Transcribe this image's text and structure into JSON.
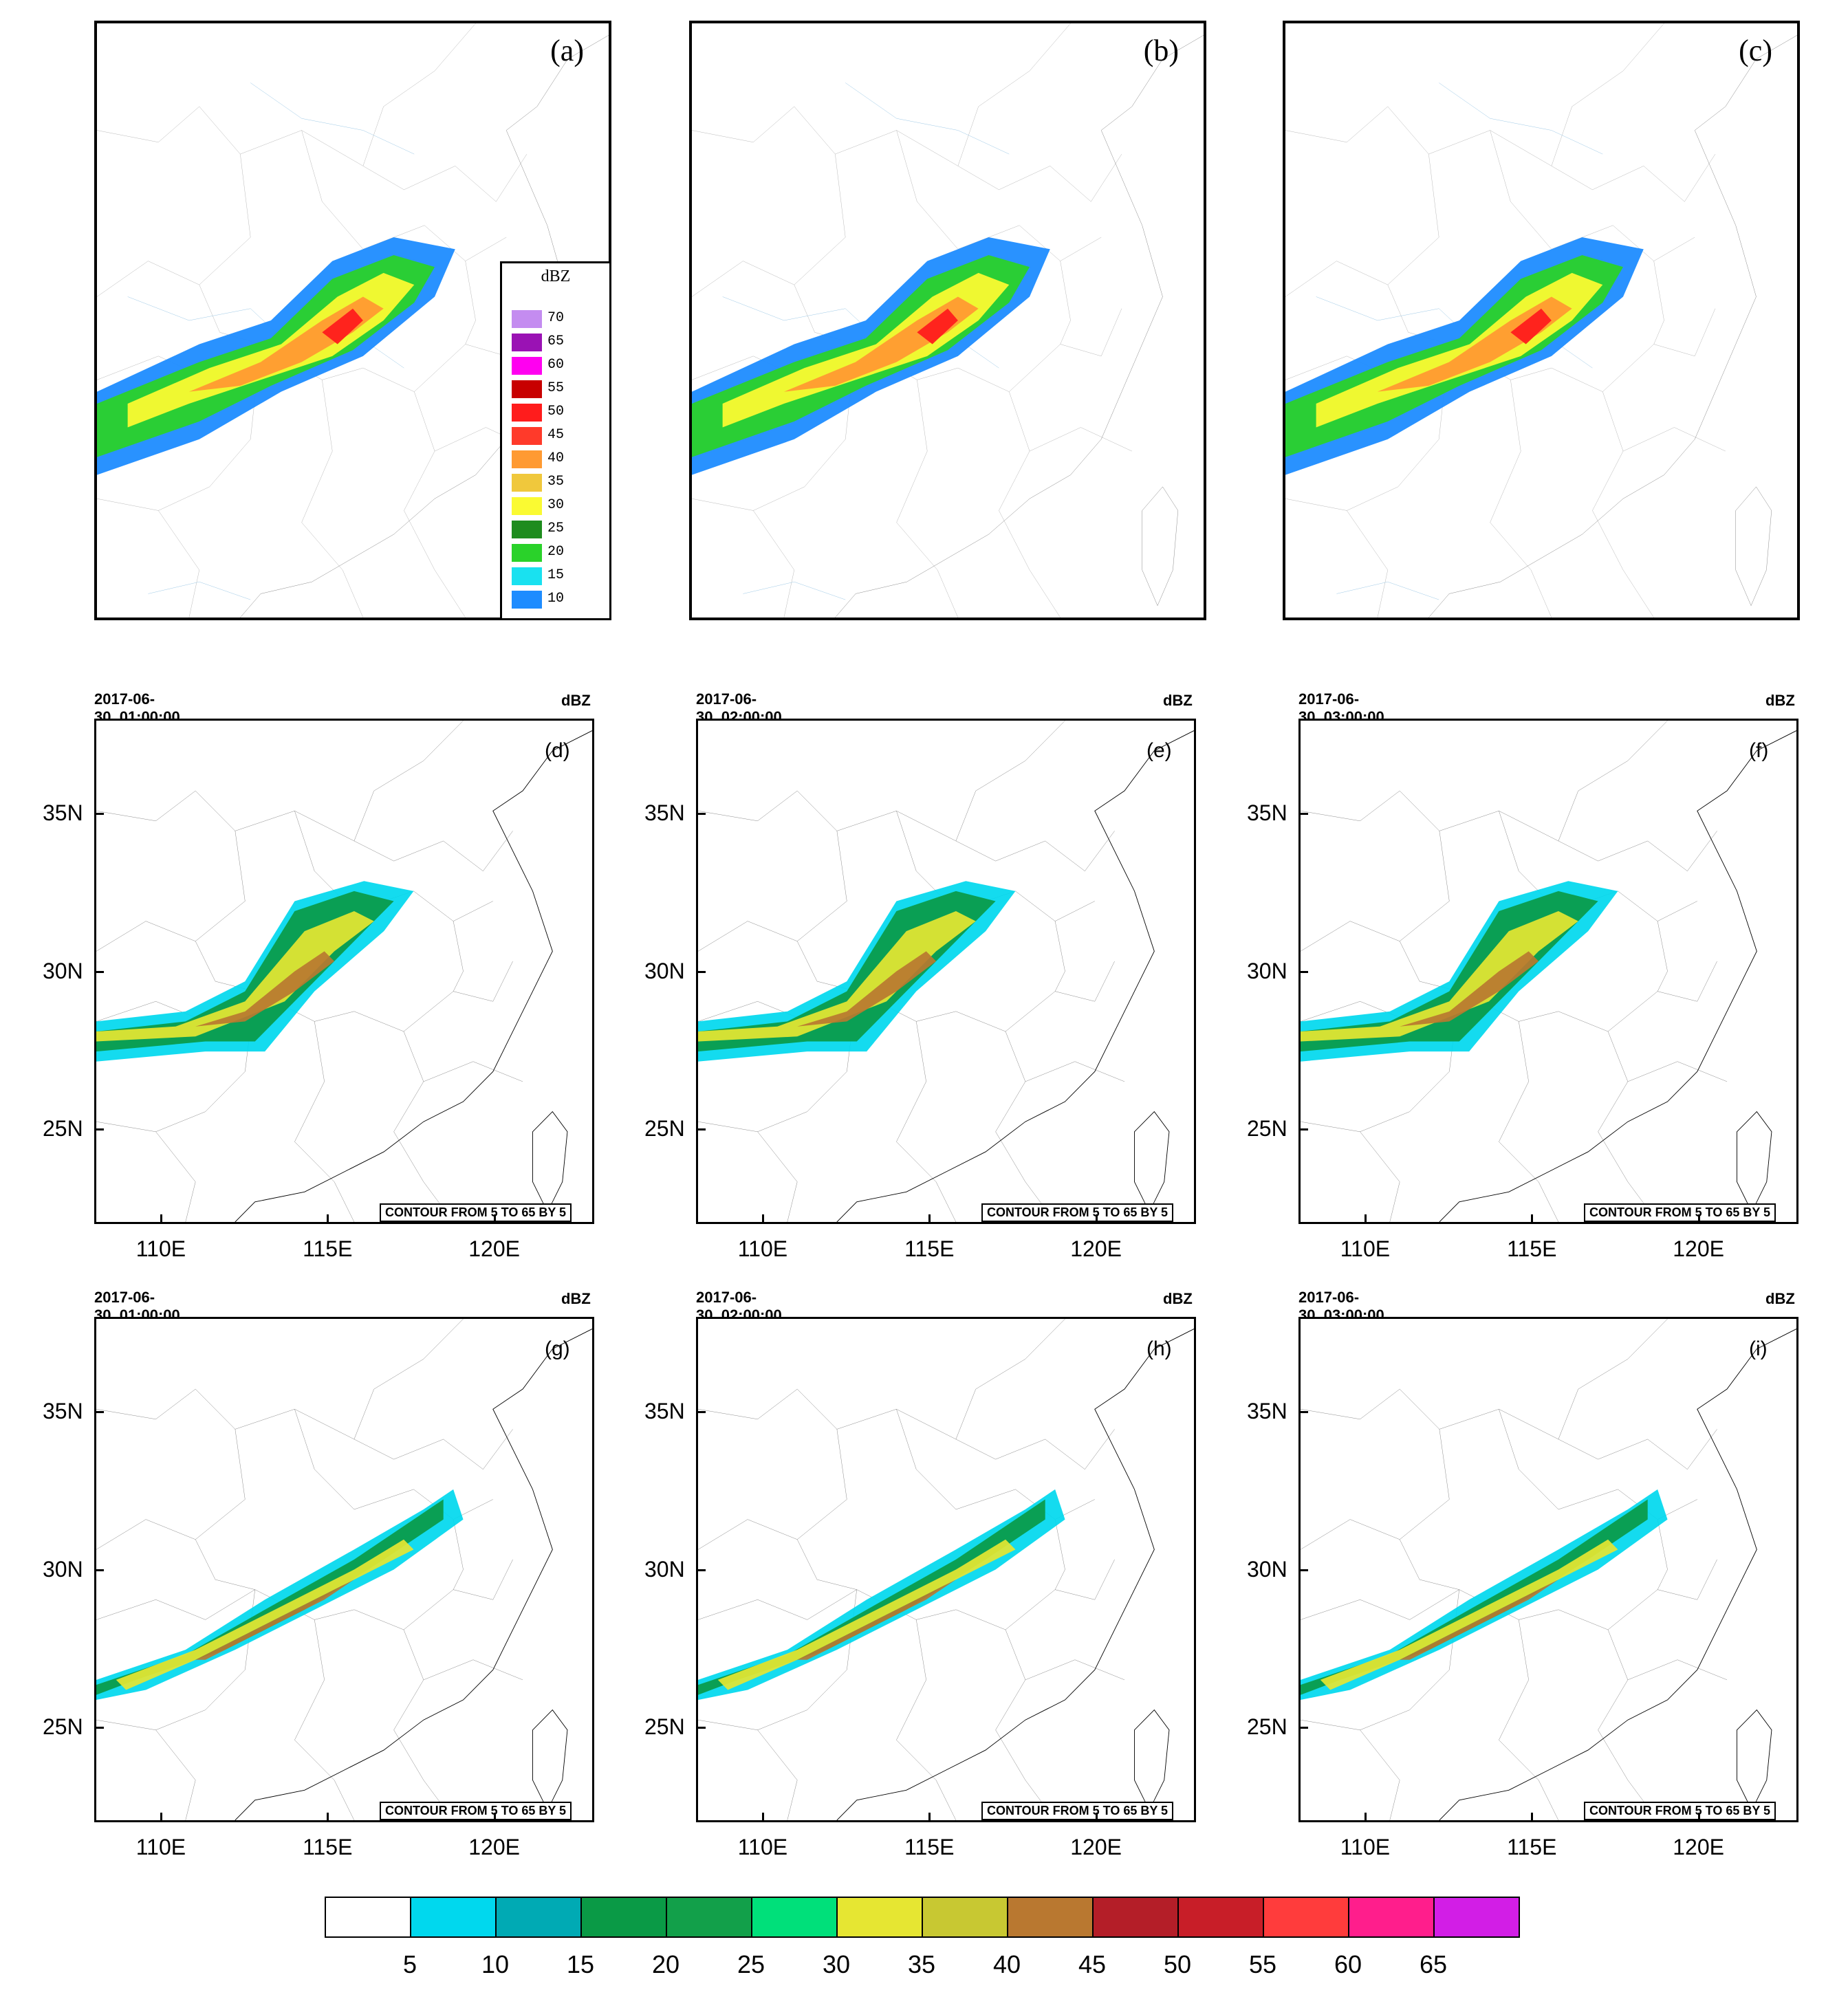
{
  "radar_panels": [
    {
      "label": "(a)"
    },
    {
      "label": "(b)"
    },
    {
      "label": "(c)"
    }
  ],
  "radar_legend": {
    "title": "dBZ",
    "levels": [
      {
        "value": "70",
        "color": "#c48cf0"
      },
      {
        "value": "65",
        "color": "#9a12b4"
      },
      {
        "value": "60",
        "color": "#ff00f0"
      },
      {
        "value": "55",
        "color": "#c80000"
      },
      {
        "value": "50",
        "color": "#ff1c1c"
      },
      {
        "value": "45",
        "color": "#ff3a2a"
      },
      {
        "value": "40",
        "color": "#ff9a32"
      },
      {
        "value": "35",
        "color": "#f0c83c"
      },
      {
        "value": "30",
        "color": "#fafa32"
      },
      {
        "value": "25",
        "color": "#1e8c1e"
      },
      {
        "value": "20",
        "color": "#2ad22a"
      },
      {
        "value": "15",
        "color": "#19e1f0"
      },
      {
        "value": "10",
        "color": "#1e8cff"
      }
    ]
  },
  "model_panels": [
    {
      "label": "(d)",
      "datetime": "2017-06-30_01:00:00",
      "unit": "dBZ",
      "contour_note": "CONTOUR FROM 5 TO 65 BY 5"
    },
    {
      "label": "(e)",
      "datetime": "2017-06-30_02:00:00",
      "unit": "dBZ",
      "contour_note": "CONTOUR FROM 5 TO 65 BY 5"
    },
    {
      "label": "(f)",
      "datetime": "2017-06-30_03:00:00",
      "unit": "dBZ",
      "contour_note": "CONTOUR FROM 5 TO 65 BY 5"
    },
    {
      "label": "(g)",
      "datetime": "2017-06-30_01:00:00",
      "unit": "dBZ",
      "contour_note": "CONTOUR FROM 5 TO 65 BY 5"
    },
    {
      "label": "(h)",
      "datetime": "2017-06-30_02:00:00",
      "unit": "dBZ",
      "contour_note": "CONTOUR FROM 5 TO 65 BY 5"
    },
    {
      "label": "(i)",
      "datetime": "2017-06-30_03:00:00",
      "unit": "dBZ",
      "contour_note": "CONTOUR FROM 5 TO 65 BY 5"
    }
  ],
  "axes": {
    "lat_labels": [
      "35N",
      "30N",
      "25N"
    ],
    "lon_labels": [
      "110E",
      "115E",
      "120E"
    ],
    "lat_range": [
      22,
      38
    ],
    "lon_range": [
      108,
      123
    ]
  },
  "colorbar": {
    "labels": [
      "5",
      "10",
      "15",
      "20",
      "25",
      "30",
      "35",
      "40",
      "45",
      "50",
      "55",
      "60",
      "65"
    ],
    "colors": [
      "#ffffff",
      "#00d8ee",
      "#00aab4",
      "#0a9a46",
      "#12a04a",
      "#00e07a",
      "#e6e632",
      "#c8c832",
      "#b97830",
      "#b41e28",
      "#c81e28",
      "#ff3c3c",
      "#ff1e8c",
      "#d21ee6"
    ]
  }
}
